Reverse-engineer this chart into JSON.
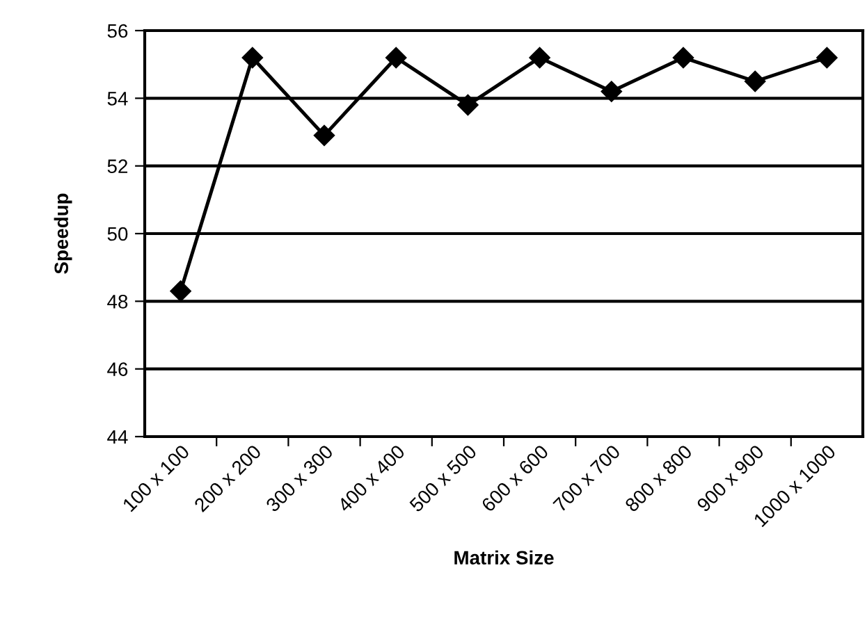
{
  "chart_data": {
    "type": "line",
    "xlabel": "Matrix Size",
    "ylabel": "Speedup",
    "categories": [
      "100 x 100",
      "200 x 200",
      "300 x 300",
      "400 x 400",
      "500 x 500",
      "600 x 600",
      "700 x 700",
      "800 x 800",
      "900 x 900",
      "1000 x 1000"
    ],
    "series": [
      {
        "color": "#000000",
        "values": [
          48.3,
          55.2,
          52.9,
          55.2,
          53.8,
          55.2,
          54.2,
          55.2,
          54.5,
          55.2
        ]
      }
    ],
    "ylim": [
      44,
      56
    ],
    "yticks": [
      44,
      46,
      48,
      50,
      52,
      54,
      56
    ],
    "grid": "y",
    "marker": "diamond",
    "line_style": "solid",
    "legend": false
  }
}
